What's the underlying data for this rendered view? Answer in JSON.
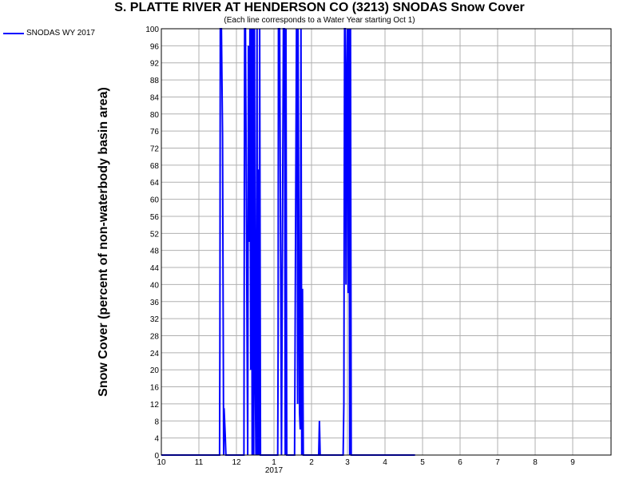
{
  "chart_data": {
    "type": "line",
    "title": "S. PLATTE RIVER AT HENDERSON CO (3213) SNODAS Snow Cover",
    "subtitle": "(Each line corresponds to a Water Year starting Oct 1)",
    "ylabel": "Snow Cover (percent of non-waterbody basin area)",
    "xlabel": "",
    "ylim": [
      0,
      100
    ],
    "y_ticks": [
      "0",
      "4",
      "8",
      "12",
      "16",
      "20",
      "24",
      "28",
      "32",
      "36",
      "40",
      "44",
      "48",
      "52",
      "56",
      "60",
      "64",
      "68",
      "72",
      "76",
      "80",
      "84",
      "88",
      "92",
      "96",
      "100"
    ],
    "x_ticks": [
      {
        "label": "10",
        "month": 0
      },
      {
        "label": "11",
        "month": 1
      },
      {
        "label": "12",
        "month": 2
      },
      {
        "label": "1",
        "month": 3
      },
      {
        "label": "2",
        "month": 4
      },
      {
        "label": "3",
        "month": 5
      },
      {
        "label": "4",
        "month": 6
      },
      {
        "label": "5",
        "month": 7
      },
      {
        "label": "6",
        "month": 8
      },
      {
        "label": "7",
        "month": 9
      },
      {
        "label": "8",
        "month": 10
      },
      {
        "label": "9",
        "month": 11
      }
    ],
    "year_label": "2017",
    "grid": true,
    "legend_position": "top-left",
    "line_color": "#0000ff",
    "series": [
      {
        "name": "SNODAS WY 2017",
        "x": [
          0,
          1.55,
          1.56,
          1.57,
          1.6,
          1.63,
          1.66,
          1.67,
          1.7,
          1.72,
          1.74,
          1.76,
          1.8,
          2.2,
          2.21,
          2.22,
          2.24,
          2.3,
          2.32,
          2.34,
          2.36,
          2.38,
          2.4,
          2.42,
          2.44,
          2.46,
          2.48,
          2.5,
          2.52,
          2.55,
          2.56,
          2.58,
          2.6,
          2.62,
          2.64,
          2.66,
          2.68,
          2.7,
          2.72,
          2.74,
          2.8,
          3.1,
          3.11,
          3.12,
          3.13,
          3.15,
          3.2,
          3.25,
          3.28,
          3.3,
          3.32,
          3.34,
          3.36,
          3.55,
          3.6,
          3.62,
          3.63,
          3.64,
          3.68,
          3.7,
          3.72,
          3.74,
          3.76,
          3.78,
          3.8,
          3.82,
          4.2,
          4.22,
          4.24,
          4.26,
          4.3,
          4.88,
          4.9,
          4.92,
          4.94,
          4.96,
          4.98,
          5.0,
          5.02,
          5.04,
          5.06,
          5.08,
          5.1,
          5.14,
          5.15,
          5.2,
          5.22,
          5.25,
          6.8
        ],
        "values": [
          0,
          0,
          25,
          100,
          100,
          75,
          0,
          11,
          5,
          0,
          0,
          0,
          0,
          0,
          62,
          100,
          100,
          0,
          96,
          50,
          100,
          20,
          100,
          0,
          100,
          0,
          100,
          20,
          0,
          100,
          0,
          67,
          0,
          100,
          0,
          0,
          0,
          0,
          0,
          0,
          0,
          0,
          25,
          100,
          100,
          100,
          0,
          100,
          100,
          0,
          100,
          0,
          0,
          0,
          100,
          88,
          12,
          100,
          10,
          6,
          100,
          0,
          39,
          0,
          0,
          0,
          0,
          8,
          0,
          0,
          0,
          0,
          12,
          100,
          100,
          40,
          87,
          100,
          38,
          100,
          0,
          100,
          0,
          0,
          0,
          0,
          0,
          0,
          0
        ]
      }
    ]
  }
}
